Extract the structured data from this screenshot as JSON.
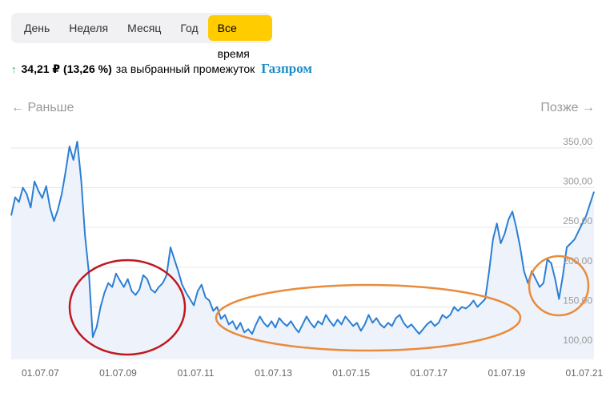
{
  "range_tabs": [
    {
      "label": "День",
      "active": false
    },
    {
      "label": "Неделя",
      "active": false
    },
    {
      "label": "Месяц",
      "active": false
    },
    {
      "label": "Год",
      "active": false
    },
    {
      "label": "Все время",
      "active": true
    }
  ],
  "summary": {
    "arrow": "↑",
    "change": "34,21 ₽ (13,26 %)",
    "period_text": "за выбранный промежуток",
    "ticker": "Газпром"
  },
  "nav": {
    "prev": "← Раньше",
    "next": "Позже →"
  },
  "colors": {
    "accent": "#ffcc00",
    "line": "#2b7fd4",
    "area": "#eef3fb",
    "red_circle": "#c0181e",
    "orange_circle": "#e98b3a",
    "up": "#2fa84f",
    "ticker": "#1c8ac7"
  },
  "chart_data": {
    "type": "area",
    "title": "",
    "xlabel": "",
    "ylabel": "",
    "x_tick_labels": [
      "01.07.07",
      "01.07.09",
      "01.07.11",
      "01.07.13",
      "01.07.15",
      "01.07.17",
      "01.07.19",
      "01.07.21"
    ],
    "y_tick_labels": [
      "100,00",
      "150,00",
      "200,00",
      "250,00",
      "300,00",
      "350,00"
    ],
    "ylim": [
      85,
      365
    ],
    "xlim": [
      2006.75,
      2021.75
    ],
    "grid": true,
    "series": [
      {
        "x": [
          2006.75,
          2006.85,
          2006.95,
          2007.05,
          2007.15,
          2007.25,
          2007.35,
          2007.45,
          2007.55,
          2007.65,
          2007.75,
          2007.85,
          2007.95,
          2008.05,
          2008.15,
          2008.25,
          2008.35,
          2008.45,
          2008.55,
          2008.65,
          2008.75,
          2008.85,
          2008.95,
          2009.05,
          2009.15,
          2009.25,
          2009.35,
          2009.45,
          2009.55,
          2009.65,
          2009.75,
          2009.85,
          2009.95,
          2010.05,
          2010.15,
          2010.25,
          2010.35,
          2010.45,
          2010.55,
          2010.65,
          2010.75,
          2010.85,
          2010.95,
          2011.05,
          2011.15,
          2011.25,
          2011.35,
          2011.45,
          2011.55,
          2011.65,
          2011.75,
          2011.85,
          2011.95,
          2012.05,
          2012.15,
          2012.25,
          2012.35,
          2012.45,
          2012.55,
          2012.65,
          2012.75,
          2012.85,
          2012.95,
          2013.05,
          2013.15,
          2013.25,
          2013.35,
          2013.45,
          2013.55,
          2013.65,
          2013.75,
          2013.85,
          2013.95,
          2014.05,
          2014.15,
          2014.25,
          2014.35,
          2014.45,
          2014.55,
          2014.65,
          2014.75,
          2014.85,
          2014.95,
          2015.05,
          2015.15,
          2015.25,
          2015.35,
          2015.45,
          2015.55,
          2015.65,
          2015.75,
          2015.85,
          2015.95,
          2016.05,
          2016.15,
          2016.25,
          2016.35,
          2016.45,
          2016.55,
          2016.65,
          2016.75,
          2016.85,
          2016.95,
          2017.05,
          2017.15,
          2017.25,
          2017.35,
          2017.45,
          2017.55,
          2017.65,
          2017.75,
          2017.85,
          2017.95,
          2018.05,
          2018.15,
          2018.25,
          2018.35,
          2018.45,
          2018.55,
          2018.65,
          2018.75,
          2018.85,
          2018.95,
          2019.05,
          2019.15,
          2019.25,
          2019.35,
          2019.45,
          2019.55,
          2019.65,
          2019.75,
          2019.85,
          2019.95,
          2020.05,
          2020.15,
          2020.25,
          2020.35,
          2020.45,
          2020.55,
          2020.65,
          2020.75,
          2020.85,
          2020.95,
          2021.05,
          2021.15,
          2021.25,
          2021.35,
          2021.45,
          2021.55,
          2021.65,
          2021.75
        ],
        "values": [
          265,
          288,
          282,
          300,
          292,
          275,
          308,
          296,
          287,
          302,
          275,
          258,
          272,
          292,
          320,
          352,
          335,
          358,
          310,
          240,
          192,
          112,
          125,
          150,
          168,
          180,
          175,
          192,
          183,
          175,
          185,
          170,
          165,
          172,
          190,
          185,
          172,
          168,
          175,
          180,
          190,
          225,
          210,
          195,
          178,
          168,
          160,
          152,
          170,
          178,
          162,
          158,
          145,
          150,
          135,
          140,
          128,
          132,
          122,
          130,
          118,
          122,
          116,
          128,
          138,
          130,
          125,
          132,
          124,
          136,
          130,
          126,
          132,
          124,
          118,
          128,
          138,
          130,
          124,
          132,
          128,
          140,
          132,
          126,
          134,
          128,
          138,
          132,
          126,
          130,
          120,
          128,
          140,
          130,
          136,
          128,
          124,
          130,
          126,
          136,
          140,
          130,
          124,
          128,
          122,
          116,
          122,
          128,
          132,
          126,
          130,
          140,
          136,
          140,
          150,
          145,
          150,
          148,
          152,
          158,
          150,
          155,
          160,
          195,
          235,
          255,
          230,
          242,
          260,
          270,
          250,
          225,
          195,
          180,
          195,
          185,
          175,
          180,
          210,
          205,
          185,
          160,
          190,
          225,
          230,
          235,
          245,
          255,
          265,
          280,
          295
        ]
      }
    ]
  }
}
